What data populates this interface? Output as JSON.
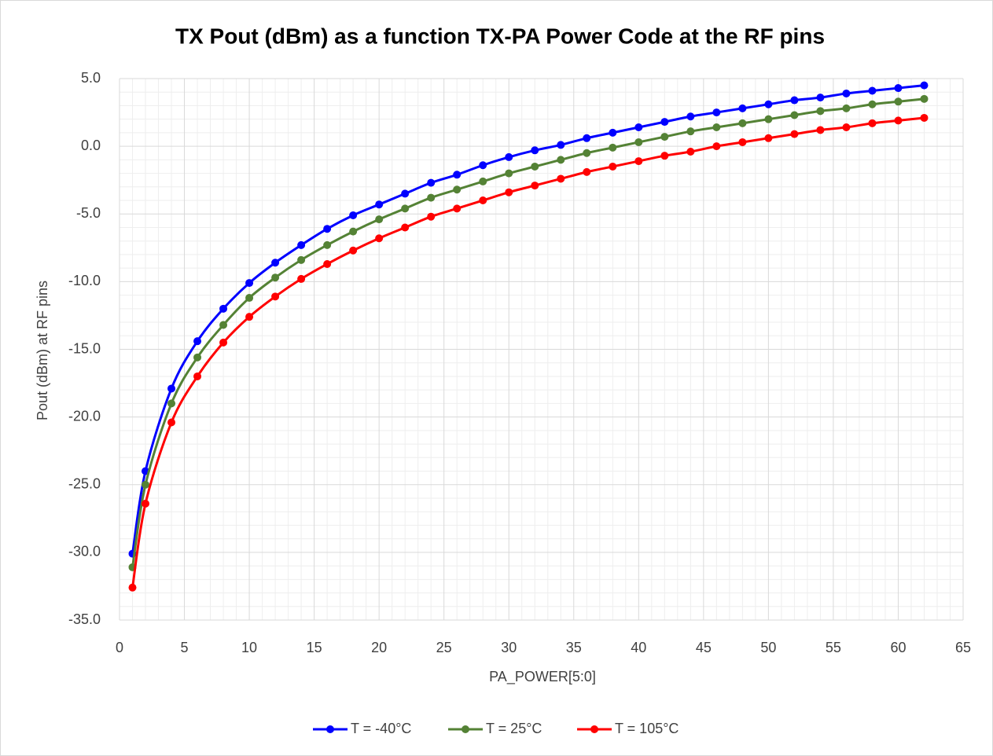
{
  "chart_data": {
    "type": "line",
    "title": "TX Pout (dBm) as a function TX-PA Power Code at the RF pins",
    "x_label": "PA_POWER[5:0]",
    "y_label": "Pout (dBm) at RF pins",
    "x": [
      1,
      2,
      4,
      6,
      8,
      10,
      12,
      14,
      16,
      18,
      20,
      22,
      24,
      26,
      28,
      30,
      32,
      34,
      36,
      38,
      40,
      42,
      44,
      46,
      48,
      50,
      52,
      54,
      56,
      58,
      60,
      62
    ],
    "series": [
      {
        "name": "T = -40°C",
        "color": "#0000ff",
        "values": [
          -30.1,
          -24.0,
          -17.9,
          -14.4,
          -12.0,
          -10.1,
          -8.6,
          -7.3,
          -6.1,
          -5.1,
          -4.3,
          -3.5,
          -2.7,
          -2.1,
          -1.4,
          -0.8,
          -0.3,
          0.1,
          0.6,
          1.0,
          1.4,
          1.8,
          2.2,
          2.5,
          2.8,
          3.1,
          3.4,
          3.6,
          3.9,
          4.1,
          4.3,
          4.5
        ]
      },
      {
        "name": "T = 25°C",
        "color": "#548235",
        "values": [
          -31.1,
          -25.0,
          -19.0,
          -15.6,
          -13.2,
          -11.2,
          -9.7,
          -8.4,
          -7.3,
          -6.3,
          -5.4,
          -4.6,
          -3.8,
          -3.2,
          -2.6,
          -2.0,
          -1.5,
          -1.0,
          -0.5,
          -0.1,
          0.3,
          0.7,
          1.1,
          1.4,
          1.7,
          2.0,
          2.3,
          2.6,
          2.8,
          3.1,
          3.3,
          3.5
        ]
      },
      {
        "name": "T = 105°C",
        "color": "#ff0000",
        "values": [
          -32.6,
          -26.4,
          -20.4,
          -17.0,
          -14.5,
          -12.6,
          -11.1,
          -9.8,
          -8.7,
          -7.7,
          -6.8,
          -6.0,
          -5.2,
          -4.6,
          -4.0,
          -3.4,
          -2.9,
          -2.4,
          -1.9,
          -1.5,
          -1.1,
          -0.7,
          -0.4,
          0.0,
          0.3,
          0.6,
          0.9,
          1.2,
          1.4,
          1.7,
          1.9,
          2.1
        ]
      }
    ],
    "xlim": [
      0,
      65
    ],
    "xticks": [
      0,
      5,
      10,
      15,
      20,
      25,
      30,
      35,
      40,
      45,
      50,
      55,
      60,
      65
    ],
    "ylim": [
      -35,
      5
    ],
    "yticks": [
      {
        "value": -35,
        "label": "-35.0"
      },
      {
        "value": -30,
        "label": "-30.0"
      },
      {
        "value": -25,
        "label": "-25.0"
      },
      {
        "value": -20,
        "label": "-20.0"
      },
      {
        "value": -15,
        "label": "-15.0"
      },
      {
        "value": -10,
        "label": "-10.0"
      },
      {
        "value": -5,
        "label": "-5.0"
      },
      {
        "value": 0,
        "label": "0.0"
      },
      {
        "value": 5,
        "label": "5.0"
      }
    ],
    "xminorticks": [
      1,
      2,
      3,
      4,
      6,
      7,
      8,
      9,
      11,
      12,
      13,
      14,
      16,
      17,
      18,
      19,
      21,
      22,
      23,
      24,
      26,
      27,
      28,
      29,
      31,
      32,
      33,
      34,
      36,
      37,
      38,
      39,
      41,
      42,
      43,
      44,
      46,
      47,
      48,
      49,
      51,
      52,
      53,
      54,
      56,
      57,
      58,
      59,
      61,
      62,
      63,
      64
    ],
    "yminorticks": [
      -34,
      -33,
      -32,
      -31,
      -29,
      -28,
      -27,
      -26,
      -24,
      -23,
      -22,
      -21,
      -19,
      -18,
      -17,
      -16,
      -14,
      -13,
      -12,
      -11,
      -9,
      -8,
      -7,
      -6,
      -4,
      -3,
      -2,
      -1,
      1,
      2,
      3,
      4
    ],
    "grid": true,
    "legend": "bottom"
  }
}
